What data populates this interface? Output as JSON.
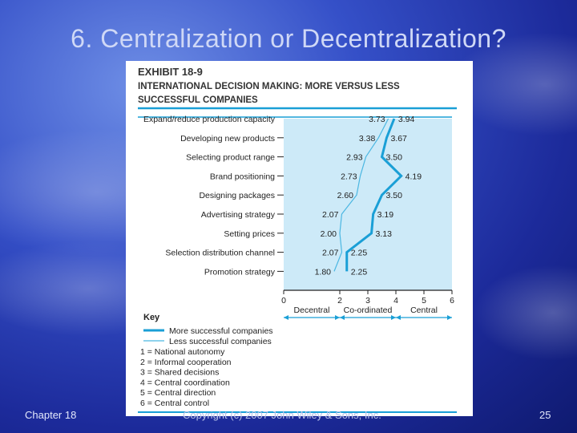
{
  "slide": {
    "title": "6. Centralization or Decentralization?",
    "footer_left": "Chapter 18",
    "footer_center": "Copyright (c) 2007 John Wiley & Sons, Inc.",
    "page_number": "25"
  },
  "exhibit": {
    "label": "EXHIBIT 18-9",
    "title_line1": "INTERNATIONAL DECISION MAKING: MORE VERSUS LESS",
    "title_line2": "SUCCESSFUL COMPANIES"
  },
  "colors": {
    "more_line": "#1a9fd6",
    "less_line": "#4bb7e2",
    "panel_fill": "#cdeaf8",
    "rule": "#1a9fd6"
  },
  "chart_data": {
    "type": "line",
    "orientation": "horizontal",
    "categories": [
      "Expand/reduce production capacity",
      "Developing new products",
      "Selecting product range",
      "Brand positioning",
      "Designing packages",
      "Advertising strategy",
      "Setting prices",
      "Selection distribution channel",
      "Promotion strategy"
    ],
    "series": [
      {
        "name": "More successful companies",
        "values": [
          3.94,
          3.67,
          3.5,
          4.19,
          3.5,
          3.19,
          3.13,
          2.25,
          2.25
        ]
      },
      {
        "name": "Less successful companies",
        "values": [
          3.73,
          3.38,
          2.93,
          2.73,
          2.6,
          2.07,
          2.0,
          2.07,
          1.8
        ]
      }
    ],
    "value_labels_more": [
      "3.94",
      "3.67",
      "3.50",
      "4.19",
      "3.50",
      "3.19",
      "3.13",
      "2.25",
      "2.25"
    ],
    "value_labels_less": [
      "3.73",
      "3.38",
      "2.93",
      "2.73",
      "2.60",
      "2.07",
      "2.00",
      "2.07",
      "1.80"
    ],
    "xlim": [
      0,
      6
    ],
    "xticks": [
      "0",
      "2",
      "3",
      "4",
      "5",
      "6"
    ],
    "xtick_values": [
      0,
      2,
      3,
      4,
      5,
      6
    ],
    "range_bands": [
      {
        "label": "Decentral",
        "from": 0,
        "to": 2
      },
      {
        "label": "Co-ordinated",
        "from": 2,
        "to": 4
      },
      {
        "label": "Central",
        "from": 4,
        "to": 6
      }
    ],
    "grid": false,
    "legend": {
      "title": "Key",
      "items": [
        "More successful companies",
        "Less successful companies"
      ]
    },
    "scale_key": [
      "1 = National autonomy",
      "2 = Informal cooperation",
      "3 = Shared decisions",
      "4 = Central coordination",
      "5 = Central direction",
      "6 = Central control"
    ]
  }
}
